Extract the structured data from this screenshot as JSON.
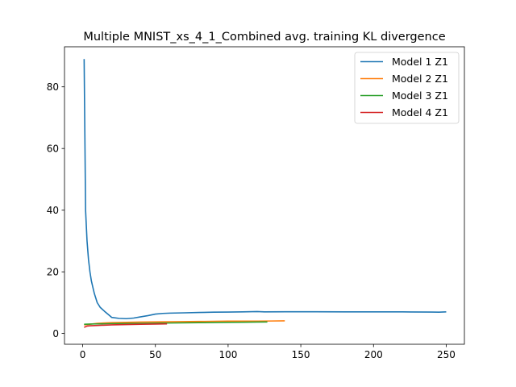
{
  "chart_data": {
    "type": "line",
    "title": "Multiple MNIST_xs_4_1_Combined avg. training KL divergence",
    "xlabel": "",
    "ylabel": "",
    "xlim": [
      -12.5,
      262.5
    ],
    "ylim": [
      -3.5,
      93.0
    ],
    "xticks": [
      0,
      50,
      100,
      150,
      200,
      250
    ],
    "yticks": [
      0,
      20,
      40,
      60,
      80
    ],
    "grid": false,
    "legend_position": "top-right",
    "series": [
      {
        "name": "Model 1 Z1",
        "color": "#1f77b4",
        "points": [
          [
            1,
            89
          ],
          [
            2,
            40
          ],
          [
            3,
            30
          ],
          [
            4,
            24
          ],
          [
            5,
            20
          ],
          [
            6,
            17
          ],
          [
            7,
            15
          ],
          [
            8,
            13
          ],
          [
            9,
            11.5
          ],
          [
            10,
            10
          ],
          [
            12,
            8.5
          ],
          [
            15,
            7.2
          ],
          [
            18,
            6
          ],
          [
            20,
            5.2
          ],
          [
            25,
            4.9
          ],
          [
            30,
            4.8
          ],
          [
            35,
            5
          ],
          [
            40,
            5.4
          ],
          [
            45,
            5.8
          ],
          [
            50,
            6.3
          ],
          [
            55,
            6.5
          ],
          [
            60,
            6.6
          ],
          [
            70,
            6.7
          ],
          [
            80,
            6.8
          ],
          [
            90,
            6.9
          ],
          [
            100,
            6.95
          ],
          [
            110,
            7
          ],
          [
            120,
            7.1
          ],
          [
            125,
            7
          ],
          [
            140,
            7.05
          ],
          [
            160,
            7.05
          ],
          [
            180,
            7
          ],
          [
            200,
            7
          ],
          [
            220,
            7
          ],
          [
            240,
            6.95
          ],
          [
            245,
            6.9
          ],
          [
            250,
            7
          ]
        ]
      },
      {
        "name": "Model 2 Z1",
        "color": "#ff7f0e",
        "points": [
          [
            1,
            2.8
          ],
          [
            5,
            3
          ],
          [
            10,
            3.3
          ],
          [
            20,
            3.5
          ],
          [
            40,
            3.7
          ],
          [
            60,
            3.8
          ],
          [
            80,
            3.9
          ],
          [
            100,
            4
          ],
          [
            120,
            4
          ],
          [
            130,
            4.05
          ],
          [
            139,
            4.1
          ]
        ]
      },
      {
        "name": "Model 3 Z1",
        "color": "#2ca02c",
        "points": [
          [
            1,
            3
          ],
          [
            5,
            3.05
          ],
          [
            10,
            3.1
          ],
          [
            20,
            3.2
          ],
          [
            40,
            3.3
          ],
          [
            60,
            3.4
          ],
          [
            80,
            3.5
          ],
          [
            100,
            3.6
          ],
          [
            110,
            3.65
          ],
          [
            120,
            3.7
          ],
          [
            127,
            3.75
          ]
        ]
      },
      {
        "name": "Model 4 Z1",
        "color": "#d62728",
        "points": [
          [
            1,
            2
          ],
          [
            3,
            2.4
          ],
          [
            5,
            2.5
          ],
          [
            10,
            2.6
          ],
          [
            20,
            2.8
          ],
          [
            30,
            2.9
          ],
          [
            40,
            3
          ],
          [
            50,
            3.05
          ],
          [
            58,
            3.1
          ]
        ]
      }
    ]
  }
}
